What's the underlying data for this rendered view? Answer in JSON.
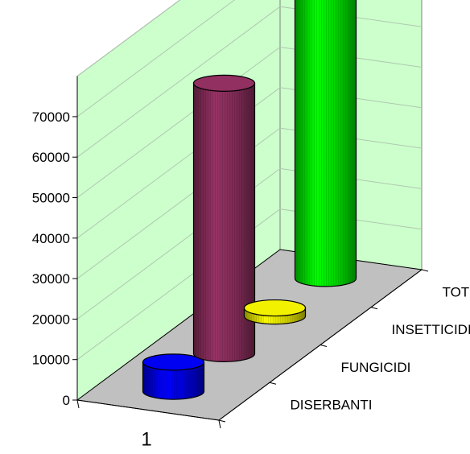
{
  "chart_data": {
    "type": "bar",
    "style": "3d-cylinder",
    "title": "",
    "xlabel": "",
    "ylabel": "",
    "categories": [
      "1"
    ],
    "series": [
      {
        "name": "DISERBANTI",
        "values": [
          7200
        ],
        "color": "#0000ff"
      },
      {
        "name": "FUNGICIDI",
        "values": [
          66800
        ],
        "color": "#993366"
      },
      {
        "name": "INSETTICIDI",
        "values": [
          2000
        ],
        "color": "#ffff00"
      },
      {
        "name": "TOT",
        "values": [
          76000
        ],
        "color": "#00ff00"
      }
    ],
    "yticks": [
      "0",
      "10000",
      "20000",
      "30000",
      "40000",
      "50000",
      "60000",
      "70000"
    ],
    "ylim": [
      0,
      80000
    ],
    "grid": true,
    "walls_color": "#ccffcc",
    "floor_color": "#c0c0c0",
    "legend": "none"
  }
}
